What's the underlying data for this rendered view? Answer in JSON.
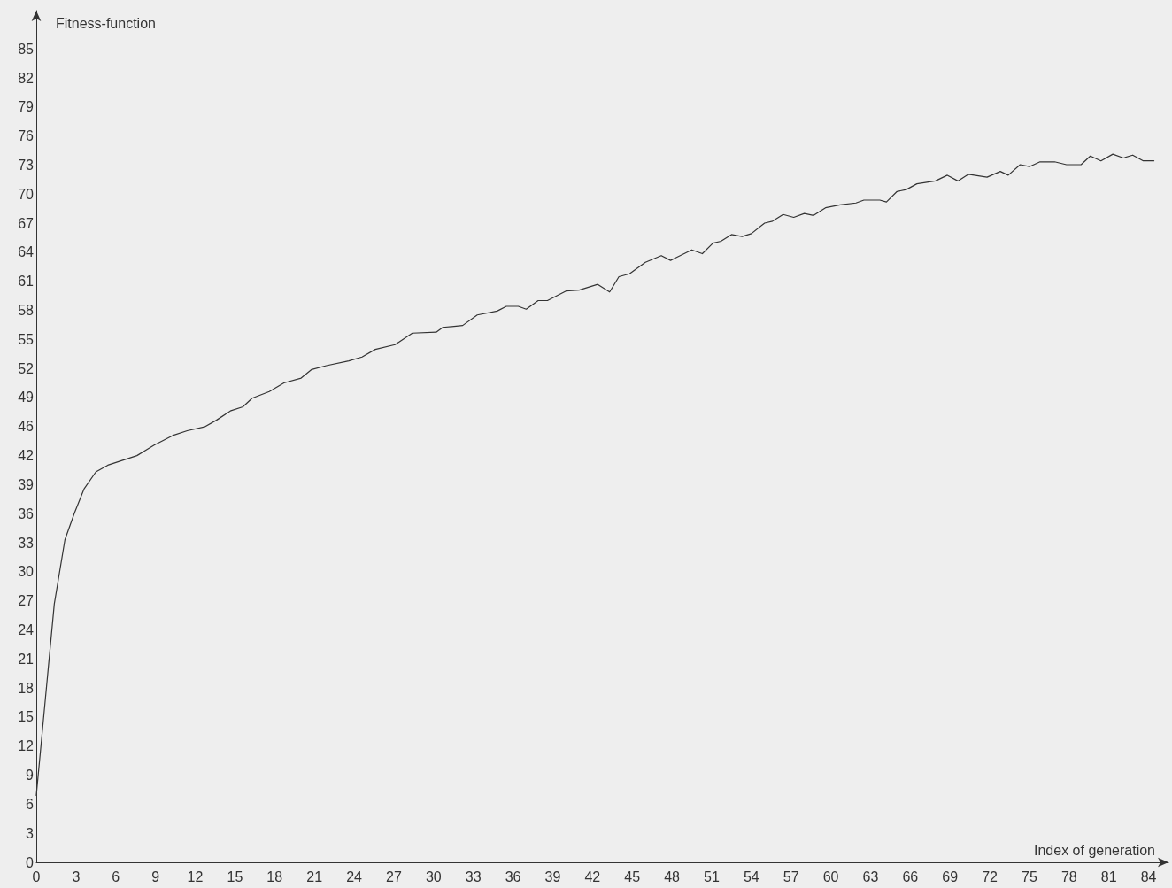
{
  "chart_data": {
    "type": "line",
    "xlabel": "Index of generation",
    "ylabel": "Fitness-function",
    "marker": "none",
    "line_style": "solid",
    "xlim": [
      0,
      85.5
    ],
    "xticks": [
      0,
      3,
      6,
      9,
      12,
      15,
      18,
      21,
      24,
      27,
      30,
      33,
      36,
      39,
      42,
      45,
      48,
      51,
      54,
      57,
      60,
      63,
      66,
      69,
      72,
      75,
      78,
      81,
      84
    ],
    "ylim": [
      0,
      89
    ],
    "yticks": [
      {
        "value": 0,
        "label": "0"
      },
      {
        "value": 3.036,
        "label": "3"
      },
      {
        "value": 6.071,
        "label": "6"
      },
      {
        "value": 9.107,
        "label": "9"
      },
      {
        "value": 12.143,
        "label": "12"
      },
      {
        "value": 15.179,
        "label": "15"
      },
      {
        "value": 18.214,
        "label": "18"
      },
      {
        "value": 21.25,
        "label": "21"
      },
      {
        "value": 24.286,
        "label": "24"
      },
      {
        "value": 27.321,
        "label": "27"
      },
      {
        "value": 30.357,
        "label": "30"
      },
      {
        "value": 33.393,
        "label": "33"
      },
      {
        "value": 36.429,
        "label": "36"
      },
      {
        "value": 39.464,
        "label": "39"
      },
      {
        "value": 42.5,
        "label": "42"
      },
      {
        "value": 45.536,
        "label": "46"
      },
      {
        "value": 48.571,
        "label": "49"
      },
      {
        "value": 51.607,
        "label": "52"
      },
      {
        "value": 54.643,
        "label": "55"
      },
      {
        "value": 57.679,
        "label": "58"
      },
      {
        "value": 60.714,
        "label": "61"
      },
      {
        "value": 63.75,
        "label": "64"
      },
      {
        "value": 66.786,
        "label": "67"
      },
      {
        "value": 69.821,
        "label": "70"
      },
      {
        "value": 72.857,
        "label": "73"
      },
      {
        "value": 75.893,
        "label": "76"
      },
      {
        "value": 78.929,
        "label": "79"
      },
      {
        "value": 81.964,
        "label": "82"
      },
      {
        "value": 85,
        "label": "85"
      }
    ],
    "series": [
      {
        "color": "#333333",
        "x": [
          0,
          1.36,
          2.16,
          2.88,
          3.6,
          4.5,
          5.4,
          7.6,
          8.9,
          10.3,
          11.4,
          12.7,
          13.6,
          14.7,
          15.6,
          16.3,
          17.6,
          18.7,
          20,
          20.8,
          21.9,
          23.6,
          24.6,
          25.6,
          27.1,
          28.4,
          30.2,
          30.7,
          32.2,
          33.3,
          34.8,
          35.5,
          36.4,
          37,
          37.9,
          38.6,
          40,
          41,
          42.4,
          43.3,
          44,
          44.8,
          46,
          47.2,
          47.9,
          49.5,
          50.3,
          51.1,
          51.7,
          52.5,
          53.3,
          54,
          55,
          55.6,
          56.4,
          57.2,
          58,
          58.7,
          59.6,
          60.7,
          61.9,
          62.5,
          63.7,
          64.2,
          65,
          65.7,
          66.5,
          67.9,
          68.8,
          69.6,
          70.4,
          71.8,
          72.8,
          73.4,
          74.3,
          75,
          75.8,
          76.9,
          77.8,
          78.9,
          79.6,
          80.4,
          81.3,
          82.1,
          82.8,
          83.6,
          84.4
        ],
        "values": [
          7.0,
          27.0,
          33.7,
          36.5,
          39.0,
          40.8,
          41.5,
          42.5,
          43.6,
          44.6,
          45.1,
          45.5,
          46.2,
          47.2,
          47.6,
          48.5,
          49.2,
          50.1,
          50.6,
          51.5,
          51.9,
          52.4,
          52.8,
          53.6,
          54.1,
          55.3,
          55.4,
          55.9,
          56.1,
          57.2,
          57.6,
          58.1,
          58.1,
          57.8,
          58.7,
          58.7,
          59.7,
          59.8,
          60.4,
          59.6,
          61.2,
          61.5,
          62.7,
          63.4,
          62.9,
          64.0,
          63.6,
          64.7,
          64.9,
          65.6,
          65.4,
          65.7,
          66.8,
          67.0,
          67.7,
          67.4,
          67.8,
          67.6,
          68.4,
          68.7,
          68.9,
          69.2,
          69.2,
          69.0,
          70.1,
          70.3,
          70.9,
          71.2,
          71.8,
          71.2,
          71.9,
          71.6,
          72.2,
          71.8,
          72.9,
          72.7,
          73.2,
          73.2,
          72.9,
          72.9,
          73.8,
          73.3,
          74.0,
          73.6,
          73.9,
          73.3,
          73.3
        ]
      }
    ]
  }
}
